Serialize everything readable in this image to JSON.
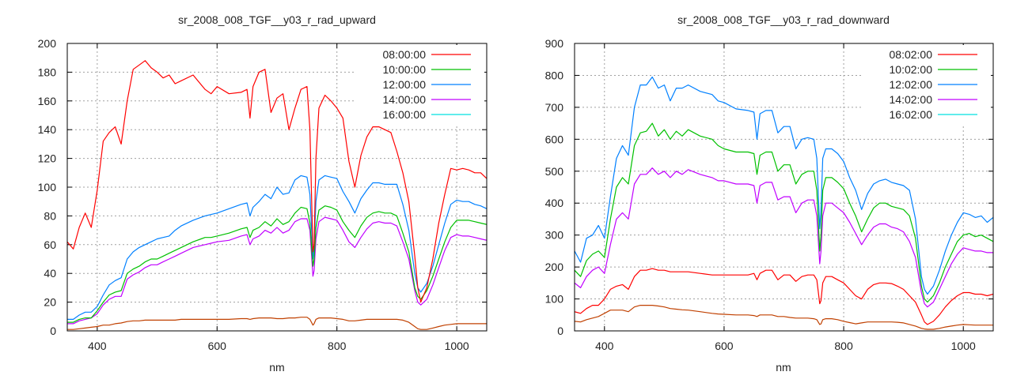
{
  "chart_data": [
    {
      "type": "line",
      "title": "sr_2008_008_TGF__y03_r_rad_upward",
      "xlabel": "nm",
      "ylabel": "",
      "xlim": [
        350,
        1050
      ],
      "ylim": [
        0,
        200
      ],
      "xticks": [
        400,
        600,
        800,
        1000
      ],
      "yticks": [
        0,
        20,
        40,
        60,
        80,
        100,
        120,
        140,
        160,
        180,
        200
      ],
      "grid": true,
      "legend_position": "top-right",
      "x": [
        350,
        360,
        370,
        380,
        390,
        400,
        410,
        420,
        430,
        440,
        450,
        460,
        470,
        480,
        490,
        500,
        510,
        520,
        530,
        540,
        560,
        580,
        590,
        600,
        620,
        640,
        650,
        655,
        660,
        670,
        680,
        690,
        700,
        710,
        720,
        730,
        740,
        750,
        755,
        760,
        762,
        765,
        770,
        780,
        790,
        800,
        810,
        820,
        830,
        840,
        850,
        860,
        870,
        880,
        890,
        900,
        910,
        920,
        930,
        935,
        940,
        950,
        960,
        970,
        980,
        990,
        1000,
        1010,
        1020,
        1030,
        1040,
        1050
      ],
      "series": [
        {
          "name": "08:00:00",
          "color": "#ff0000",
          "legend_color": "#ff0000",
          "values": [
            62,
            57,
            72,
            82,
            72,
            98,
            132,
            138,
            142,
            130,
            160,
            182,
            185,
            188,
            183,
            180,
            176,
            178,
            172,
            174,
            178,
            168,
            165,
            170,
            165,
            166,
            168,
            148,
            170,
            180,
            182,
            152,
            162,
            165,
            140,
            155,
            168,
            170,
            140,
            55,
            60,
            120,
            155,
            164,
            160,
            155,
            148,
            118,
            100,
            122,
            135,
            142,
            142,
            140,
            138,
            125,
            110,
            90,
            52,
            30,
            20,
            30,
            50,
            75,
            95,
            113,
            112,
            113,
            112,
            110,
            110,
            106
          ]
        },
        {
          "name": "10:00:00",
          "color": "#00c000",
          "legend_color": "#00c000",
          "values": [
            6,
            6,
            8,
            9,
            9,
            14,
            20,
            25,
            27,
            28,
            40,
            43,
            45,
            48,
            50,
            50,
            52,
            54,
            56,
            58,
            62,
            65,
            65,
            66,
            68,
            71,
            72,
            65,
            70,
            72,
            76,
            73,
            78,
            74,
            76,
            82,
            86,
            85,
            75,
            45,
            50,
            72,
            84,
            87,
            86,
            84,
            76,
            70,
            65,
            73,
            79,
            82,
            83,
            82,
            82,
            80,
            68,
            55,
            30,
            24,
            22,
            28,
            38,
            50,
            62,
            72,
            77,
            77,
            77,
            76,
            75,
            74
          ]
        },
        {
          "name": "12:00:00",
          "color": "#0080ff",
          "legend_color": "#0080ff",
          "values": [
            8,
            8,
            11,
            13,
            13,
            17,
            25,
            32,
            35,
            37,
            50,
            55,
            58,
            60,
            62,
            64,
            65,
            66,
            70,
            73,
            77,
            80,
            81,
            82,
            85,
            88,
            89,
            80,
            86,
            90,
            95,
            92,
            100,
            95,
            96,
            105,
            108,
            107,
            95,
            50,
            58,
            90,
            105,
            108,
            107,
            106,
            97,
            90,
            82,
            92,
            98,
            103,
            103,
            102,
            102,
            102,
            88,
            70,
            40,
            30,
            27,
            33,
            45,
            60,
            75,
            88,
            91,
            90,
            90,
            88,
            87,
            85
          ]
        },
        {
          "name": "14:00:00",
          "color": "#c000ff",
          "legend_color": "#c000ff",
          "values": [
            5,
            5,
            7,
            8,
            9,
            12,
            18,
            22,
            24,
            24,
            36,
            39,
            41,
            44,
            46,
            46,
            48,
            50,
            52,
            54,
            58,
            60,
            61,
            62,
            63,
            66,
            67,
            60,
            64,
            66,
            70,
            68,
            72,
            68,
            70,
            76,
            78,
            78,
            70,
            38,
            42,
            64,
            76,
            79,
            78,
            77,
            70,
            62,
            58,
            65,
            71,
            75,
            76,
            75,
            75,
            73,
            62,
            50,
            28,
            20,
            18,
            22,
            32,
            44,
            56,
            65,
            67,
            66,
            66,
            65,
            64,
            63
          ]
        },
        {
          "name": "16:00:00",
          "color": "#c04000",
          "legend_color": "#00e0e0",
          "values": [
            1,
            1,
            1.5,
            2,
            2.5,
            3,
            4,
            4,
            5,
            5.5,
            6.5,
            7,
            7,
            7.5,
            7.5,
            7.5,
            7.5,
            7.5,
            7.5,
            8,
            8,
            8,
            8,
            8,
            8,
            8.5,
            8.5,
            8,
            8.5,
            9,
            9,
            9,
            8.5,
            8.5,
            9,
            9,
            9.5,
            9.5,
            8,
            4,
            5,
            8,
            9,
            9,
            9,
            8.5,
            8,
            7,
            7,
            7.5,
            8,
            8,
            8,
            8,
            8,
            8,
            7.5,
            6,
            3,
            1.5,
            1,
            1,
            2,
            3,
            4,
            4.5,
            5,
            5,
            5,
            5,
            5,
            5
          ]
        }
      ]
    },
    {
      "type": "line",
      "title": "sr_2008_008_TGF__y03_r_rad_downward",
      "xlabel": "nm",
      "ylabel": "",
      "xlim": [
        350,
        1050
      ],
      "ylim": [
        0,
        900
      ],
      "xticks": [
        400,
        600,
        800,
        1000
      ],
      "yticks": [
        0,
        100,
        200,
        300,
        400,
        500,
        600,
        700,
        800,
        900
      ],
      "grid": true,
      "legend_position": "top-right",
      "x": [
        350,
        360,
        370,
        380,
        390,
        400,
        410,
        420,
        430,
        440,
        450,
        460,
        470,
        480,
        490,
        500,
        510,
        520,
        530,
        540,
        560,
        580,
        590,
        600,
        620,
        640,
        650,
        655,
        660,
        670,
        680,
        690,
        700,
        710,
        720,
        730,
        740,
        750,
        755,
        760,
        762,
        765,
        770,
        780,
        790,
        800,
        810,
        820,
        830,
        840,
        850,
        860,
        870,
        880,
        890,
        900,
        910,
        920,
        930,
        935,
        940,
        950,
        960,
        970,
        980,
        990,
        1000,
        1010,
        1020,
        1030,
        1040,
        1050
      ],
      "series": [
        {
          "name": "08:02:00",
          "color": "#ff0000",
          "legend_color": "#ff0000",
          "values": [
            60,
            55,
            70,
            80,
            80,
            100,
            130,
            140,
            145,
            130,
            170,
            190,
            190,
            195,
            190,
            190,
            185,
            185,
            185,
            185,
            180,
            175,
            175,
            175,
            175,
            175,
            180,
            160,
            180,
            190,
            190,
            160,
            175,
            175,
            155,
            170,
            175,
            175,
            160,
            85,
            95,
            150,
            170,
            170,
            160,
            150,
            130,
            110,
            100,
            130,
            145,
            150,
            150,
            148,
            140,
            130,
            110,
            90,
            50,
            28,
            20,
            30,
            50,
            75,
            95,
            110,
            120,
            120,
            115,
            115,
            110,
            115
          ]
        },
        {
          "name": "10:02:00",
          "color": "#00c000",
          "legend_color": "#00c000",
          "values": [
            190,
            170,
            220,
            240,
            250,
            230,
            350,
            450,
            480,
            460,
            580,
            620,
            625,
            650,
            610,
            630,
            600,
            625,
            610,
            630,
            610,
            600,
            580,
            570,
            560,
            560,
            555,
            490,
            550,
            560,
            560,
            500,
            520,
            520,
            460,
            490,
            500,
            500,
            440,
            250,
            300,
            440,
            480,
            480,
            465,
            445,
            400,
            360,
            310,
            350,
            385,
            400,
            400,
            390,
            385,
            380,
            360,
            290,
            140,
            100,
            90,
            110,
            150,
            200,
            240,
            280,
            300,
            305,
            295,
            300,
            290,
            280
          ]
        },
        {
          "name": "12:02:00",
          "color": "#0080ff",
          "legend_color": "#0080ff",
          "values": [
            250,
            215,
            290,
            300,
            330,
            290,
            420,
            540,
            580,
            550,
            700,
            770,
            770,
            795,
            760,
            770,
            720,
            760,
            760,
            770,
            750,
            740,
            720,
            715,
            695,
            690,
            685,
            600,
            680,
            690,
            690,
            620,
            640,
            640,
            570,
            600,
            605,
            600,
            540,
            320,
            380,
            540,
            570,
            570,
            555,
            530,
            480,
            440,
            380,
            430,
            460,
            470,
            475,
            465,
            460,
            455,
            440,
            350,
            170,
            130,
            115,
            140,
            190,
            250,
            300,
            340,
            370,
            365,
            355,
            360,
            340,
            355
          ]
        },
        {
          "name": "14:02:00",
          "color": "#c000ff",
          "legend_color": "#c000ff",
          "values": [
            150,
            135,
            170,
            190,
            200,
            180,
            270,
            350,
            370,
            350,
            460,
            490,
            490,
            510,
            490,
            500,
            480,
            500,
            490,
            505,
            490,
            480,
            470,
            470,
            460,
            460,
            455,
            400,
            455,
            465,
            465,
            410,
            420,
            420,
            370,
            400,
            410,
            410,
            360,
            210,
            250,
            360,
            400,
            400,
            385,
            370,
            340,
            305,
            270,
            300,
            325,
            335,
            335,
            325,
            320,
            310,
            280,
            230,
            120,
            85,
            75,
            90,
            130,
            170,
            210,
            240,
            260,
            255,
            250,
            250,
            245,
            245
          ]
        },
        {
          "name": "16:02:00",
          "color": "#c04000",
          "legend_color": "#00e0e0",
          "values": [
            30,
            28,
            35,
            40,
            45,
            55,
            65,
            65,
            65,
            60,
            75,
            80,
            80,
            80,
            78,
            75,
            70,
            68,
            66,
            65,
            60,
            55,
            53,
            52,
            50,
            50,
            48,
            45,
            50,
            50,
            50,
            45,
            45,
            42,
            40,
            40,
            40,
            38,
            35,
            20,
            22,
            35,
            38,
            38,
            35,
            30,
            26,
            22,
            25,
            28,
            28,
            28,
            28,
            28,
            27,
            25,
            20,
            15,
            8,
            6,
            5,
            5,
            8,
            12,
            15,
            18,
            20,
            19,
            18,
            18,
            18,
            18
          ]
        }
      ]
    }
  ]
}
